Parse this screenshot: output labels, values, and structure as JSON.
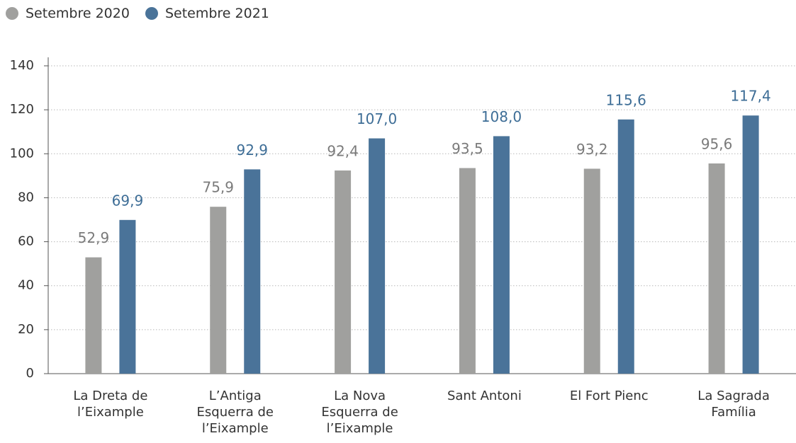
{
  "chart_data": {
    "type": "bar",
    "categories": [
      "La Dreta de l’Eixample",
      "L’Antiga Esquerra de l’Eixample",
      "La Nova Esquerra de l’Eixample",
      "Sant Antoni",
      "El Fort Pienc",
      "La Sagrada Família"
    ],
    "series": [
      {
        "name": "Setembre 2020",
        "color": "#a0a09e",
        "label_color": "#7a7a7a",
        "values": [
          52.9,
          75.9,
          92.4,
          93.5,
          93.2,
          95.6
        ],
        "value_labels": [
          "52,9",
          "75,9",
          "92,4",
          "93,5",
          "93,2",
          "95,6"
        ]
      },
      {
        "name": "Setembre 2021",
        "color": "#4a7399",
        "label_color": "#3d6d96",
        "values": [
          69.9,
          92.9,
          107.0,
          108.0,
          115.6,
          117.4
        ],
        "value_labels": [
          "69,9",
          "92,9",
          "107,0",
          "108,0",
          "115,6",
          "117,4"
        ]
      }
    ],
    "ylim": [
      0,
      140
    ],
    "yticks": [
      0,
      20,
      40,
      60,
      80,
      100,
      120,
      140
    ],
    "grid": true
  }
}
